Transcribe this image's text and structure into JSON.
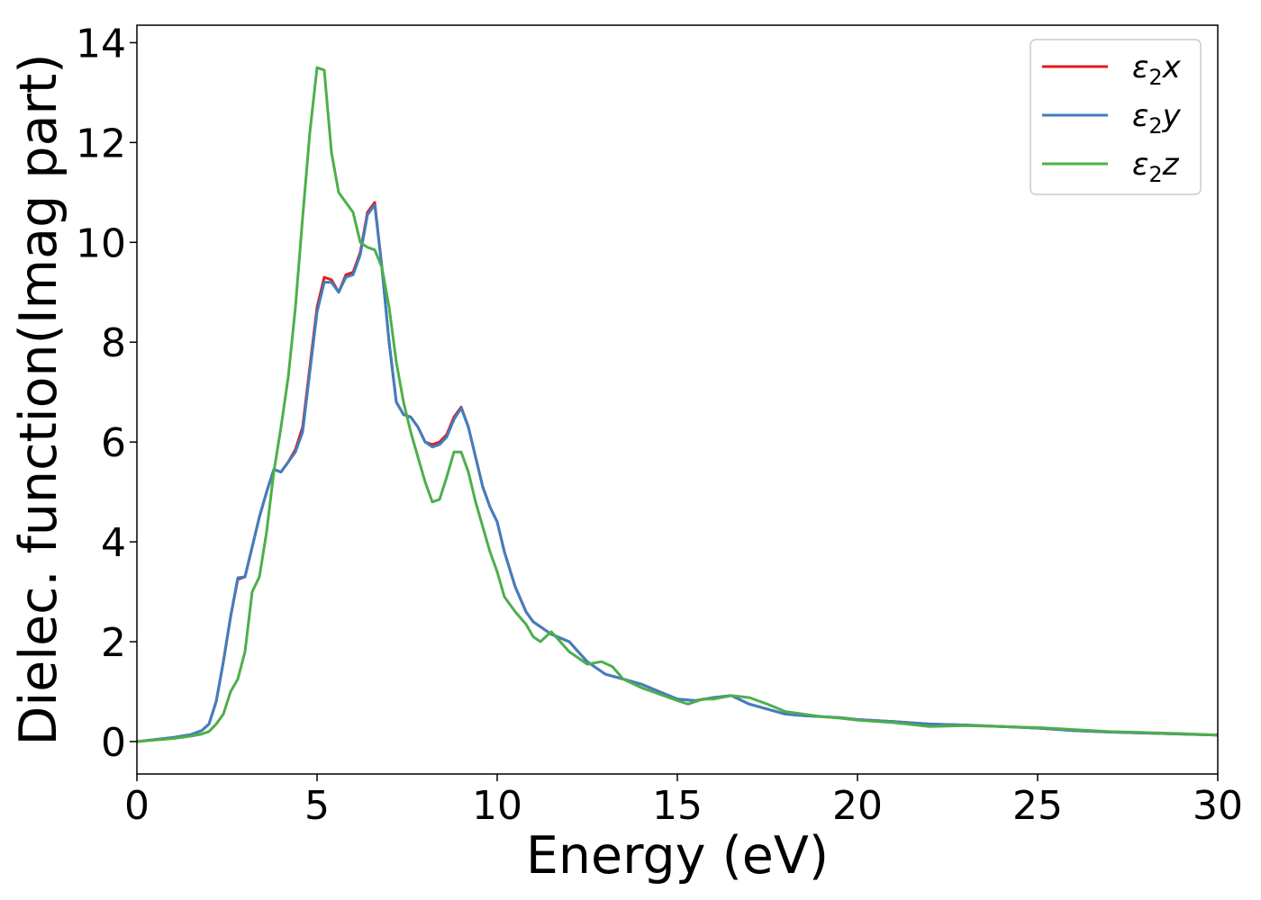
{
  "chart_data": {
    "type": "line",
    "xlabel": "Energy (eV)",
    "ylabel": "Dielec. function(Imag part)",
    "xlim": [
      0,
      30
    ],
    "ylim": [
      -0.65,
      14.35
    ],
    "xticks": [
      0,
      5,
      10,
      15,
      20,
      25,
      30
    ],
    "yticks": [
      0,
      2,
      4,
      6,
      8,
      10,
      12,
      14
    ],
    "grid": false,
    "legend_position": "top-right",
    "series": [
      {
        "name": "ε₂x",
        "legend_base": "ε",
        "legend_sub": "2",
        "legend_var": "x",
        "color": "#e41a1c",
        "x": [
          0,
          0.5,
          1.0,
          1.5,
          1.8,
          2.0,
          2.2,
          2.4,
          2.6,
          2.8,
          3.0,
          3.2,
          3.4,
          3.6,
          3.8,
          4.0,
          4.2,
          4.4,
          4.6,
          4.8,
          5.0,
          5.2,
          5.4,
          5.6,
          5.8,
          6.0,
          6.2,
          6.4,
          6.6,
          6.8,
          7.0,
          7.2,
          7.4,
          7.6,
          7.8,
          8.0,
          8.2,
          8.4,
          8.6,
          8.8,
          9.0,
          9.2,
          9.4,
          9.6,
          9.8,
          10.0,
          10.2,
          10.5,
          10.8,
          11.0,
          11.2,
          11.5,
          12.0,
          12.5,
          13.0,
          13.5,
          14.0,
          14.5,
          15.0,
          15.5,
          16.0,
          16.5,
          17.0,
          17.5,
          18.0,
          18.5,
          19.0,
          19.5,
          20.0,
          21.0,
          22.0,
          23.0,
          24.0,
          25.0,
          26.0,
          27.0,
          28.0,
          29.0,
          30.0
        ],
        "values": [
          0.0,
          0.04,
          0.08,
          0.14,
          0.22,
          0.35,
          0.8,
          1.6,
          2.5,
          3.25,
          3.3,
          3.9,
          4.5,
          5.0,
          5.45,
          5.4,
          5.6,
          5.85,
          6.3,
          7.5,
          8.7,
          9.3,
          9.25,
          9.0,
          9.35,
          9.4,
          9.8,
          10.6,
          10.8,
          9.5,
          8.0,
          6.8,
          6.55,
          6.5,
          6.3,
          6.0,
          5.95,
          6.0,
          6.15,
          6.5,
          6.7,
          6.3,
          5.7,
          5.1,
          4.7,
          4.4,
          3.8,
          3.1,
          2.6,
          2.4,
          2.3,
          2.15,
          2.0,
          1.6,
          1.35,
          1.25,
          1.15,
          1.0,
          0.85,
          0.82,
          0.88,
          0.92,
          0.75,
          0.65,
          0.55,
          0.52,
          0.5,
          0.48,
          0.44,
          0.4,
          0.35,
          0.33,
          0.3,
          0.27,
          0.22,
          0.19,
          0.17,
          0.15,
          0.13
        ]
      },
      {
        "name": "ε₂y",
        "legend_base": "ε",
        "legend_sub": "2",
        "legend_var": "y",
        "color": "#3f7fbf",
        "x": [
          0,
          0.5,
          1.0,
          1.5,
          1.8,
          2.0,
          2.2,
          2.4,
          2.6,
          2.8,
          3.0,
          3.2,
          3.4,
          3.6,
          3.8,
          4.0,
          4.2,
          4.4,
          4.6,
          4.8,
          5.0,
          5.2,
          5.4,
          5.6,
          5.8,
          6.0,
          6.2,
          6.4,
          6.6,
          6.8,
          7.0,
          7.2,
          7.4,
          7.6,
          7.8,
          8.0,
          8.2,
          8.4,
          8.6,
          8.8,
          9.0,
          9.2,
          9.4,
          9.6,
          9.8,
          10.0,
          10.2,
          10.5,
          10.8,
          11.0,
          11.2,
          11.5,
          12.0,
          12.5,
          13.0,
          13.5,
          14.0,
          14.5,
          15.0,
          15.5,
          16.0,
          16.5,
          17.0,
          17.5,
          18.0,
          18.5,
          19.0,
          19.5,
          20.0,
          21.0,
          22.0,
          23.0,
          24.0,
          25.0,
          26.0,
          27.0,
          28.0,
          29.0,
          30.0
        ],
        "values": [
          0.0,
          0.04,
          0.08,
          0.14,
          0.22,
          0.35,
          0.8,
          1.6,
          2.5,
          3.28,
          3.3,
          3.9,
          4.5,
          5.0,
          5.45,
          5.4,
          5.6,
          5.8,
          6.2,
          7.4,
          8.6,
          9.2,
          9.2,
          9.0,
          9.3,
          9.35,
          9.75,
          10.55,
          10.75,
          9.5,
          8.0,
          6.8,
          6.55,
          6.5,
          6.3,
          6.0,
          5.9,
          5.95,
          6.1,
          6.45,
          6.68,
          6.3,
          5.7,
          5.1,
          4.7,
          4.4,
          3.8,
          3.1,
          2.6,
          2.4,
          2.3,
          2.15,
          2.0,
          1.6,
          1.35,
          1.25,
          1.15,
          1.0,
          0.85,
          0.82,
          0.88,
          0.92,
          0.75,
          0.65,
          0.55,
          0.52,
          0.5,
          0.48,
          0.44,
          0.4,
          0.35,
          0.33,
          0.3,
          0.27,
          0.22,
          0.19,
          0.17,
          0.15,
          0.13
        ]
      },
      {
        "name": "ε₂z",
        "legend_base": "ε",
        "legend_sub": "2",
        "legend_var": "z",
        "color": "#4daf4a",
        "x": [
          0,
          0.5,
          1.0,
          1.5,
          1.8,
          2.0,
          2.2,
          2.4,
          2.6,
          2.8,
          3.0,
          3.2,
          3.4,
          3.6,
          3.8,
          4.0,
          4.2,
          4.4,
          4.6,
          4.8,
          5.0,
          5.2,
          5.4,
          5.6,
          5.8,
          6.0,
          6.2,
          6.4,
          6.6,
          6.8,
          7.0,
          7.2,
          7.4,
          7.6,
          7.8,
          8.0,
          8.2,
          8.4,
          8.6,
          8.8,
          9.0,
          9.2,
          9.4,
          9.6,
          9.8,
          10.0,
          10.2,
          10.5,
          10.8,
          11.0,
          11.2,
          11.5,
          12.0,
          12.5,
          12.9,
          13.2,
          13.5,
          14.0,
          14.5,
          15.0,
          15.3,
          15.7,
          16.0,
          16.5,
          17.0,
          17.5,
          18.0,
          18.5,
          19.0,
          19.5,
          20.0,
          21.0,
          22.0,
          23.0,
          24.0,
          25.0,
          26.0,
          27.0,
          28.0,
          29.0,
          30.0
        ],
        "values": [
          0.0,
          0.03,
          0.06,
          0.11,
          0.15,
          0.2,
          0.35,
          0.55,
          1.0,
          1.25,
          1.8,
          3.0,
          3.3,
          4.2,
          5.4,
          6.3,
          7.3,
          8.7,
          10.5,
          12.2,
          13.5,
          13.45,
          11.8,
          11.0,
          10.8,
          10.6,
          10.0,
          9.9,
          9.85,
          9.5,
          8.7,
          7.6,
          6.8,
          6.2,
          5.7,
          5.2,
          4.8,
          4.85,
          5.3,
          5.8,
          5.8,
          5.4,
          4.8,
          4.3,
          3.8,
          3.4,
          2.9,
          2.6,
          2.35,
          2.1,
          2.0,
          2.2,
          1.8,
          1.55,
          1.6,
          1.5,
          1.25,
          1.08,
          0.95,
          0.82,
          0.75,
          0.85,
          0.85,
          0.92,
          0.88,
          0.75,
          0.6,
          0.55,
          0.5,
          0.47,
          0.43,
          0.38,
          0.3,
          0.32,
          0.3,
          0.28,
          0.24,
          0.2,
          0.18,
          0.16,
          0.13
        ]
      }
    ]
  }
}
